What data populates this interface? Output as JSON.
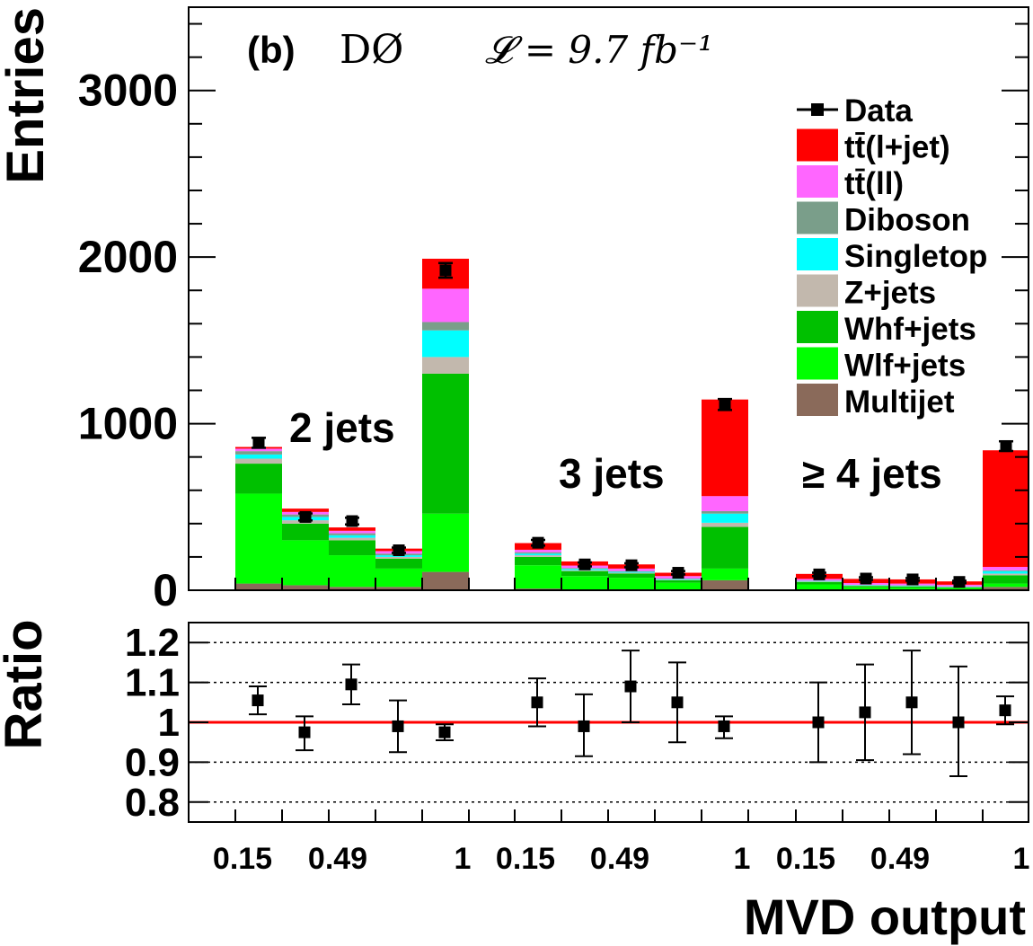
{
  "chart_data": [
    {
      "type": "bar",
      "stacked": true,
      "panel_label": "(b)",
      "experiment": "DØ",
      "luminosity": "𝓛 = 9.7 fb⁻¹",
      "ylabel": "Entries",
      "ylim": [
        0,
        3500
      ],
      "yticks": [
        0,
        1000,
        2000,
        3000
      ],
      "groups": [
        {
          "label": "2 jets",
          "bins": 5
        },
        {
          "label": "3 jets",
          "bins": 5
        },
        {
          "label": "≥ 4 jets",
          "bins": 5
        }
      ],
      "legend_position": "top-right",
      "legend": [
        {
          "name": "Data",
          "marker": "point"
        },
        {
          "name": "tt̄(l+jet)",
          "color": "#ff0000"
        },
        {
          "name": "tt̄(ll)",
          "color": "#ff66ff"
        },
        {
          "name": "Diboson",
          "color": "#7a9e8a"
        },
        {
          "name": "Singletop",
          "color": "#00ffff"
        },
        {
          "name": "Z+jets",
          "color": "#c2b8ad"
        },
        {
          "name": "Whf+jets",
          "color": "#00c000"
        },
        {
          "name": "Wlf+jets",
          "color": "#00ff00"
        },
        {
          "name": "Multijet",
          "color": "#8a6a5a"
        }
      ],
      "series": [
        {
          "name": "Multijet",
          "color": "#8a6a5a",
          "values": [
            40,
            30,
            20,
            20,
            110,
            10,
            5,
            5,
            5,
            60,
            5,
            3,
            3,
            3,
            20
          ]
        },
        {
          "name": "Wlf+jets",
          "color": "#00ff00",
          "values": [
            540,
            270,
            190,
            110,
            350,
            140,
            80,
            70,
            40,
            70,
            30,
            15,
            12,
            10,
            20
          ]
        },
        {
          "name": "Whf+jets",
          "color": "#00c000",
          "values": [
            180,
            100,
            90,
            60,
            840,
            50,
            30,
            25,
            15,
            250,
            15,
            8,
            8,
            5,
            50
          ]
        },
        {
          "name": "Z+jets",
          "color": "#c2b8ad",
          "values": [
            30,
            20,
            15,
            10,
            100,
            10,
            5,
            5,
            3,
            25,
            3,
            2,
            2,
            2,
            10
          ]
        },
        {
          "name": "Singletop",
          "color": "#00ffff",
          "values": [
            25,
            20,
            15,
            10,
            160,
            10,
            8,
            6,
            4,
            55,
            3,
            3,
            3,
            2,
            15
          ]
        },
        {
          "name": "Diboson",
          "color": "#7a9e8a",
          "values": [
            20,
            15,
            12,
            10,
            50,
            8,
            5,
            4,
            3,
            15,
            2,
            2,
            2,
            1,
            5
          ]
        },
        {
          "name": "tt̄(ll)",
          "color": "#ff66ff",
          "values": [
            15,
            15,
            15,
            15,
            200,
            15,
            15,
            15,
            15,
            90,
            10,
            10,
            10,
            10,
            20
          ]
        },
        {
          "name": "tt̄(l+jet)",
          "color": "#ff0000",
          "values": [
            10,
            20,
            20,
            15,
            180,
            40,
            25,
            25,
            20,
            580,
            30,
            25,
            25,
            20,
            700
          ]
        }
      ],
      "data": [
        {
          "value": 885,
          "err": 30
        },
        {
          "value": 440,
          "err": 21
        },
        {
          "value": 415,
          "err": 20
        },
        {
          "value": 240,
          "err": 16
        },
        {
          "value": 1920,
          "err": 44
        },
        {
          "value": 285,
          "err": 17
        },
        {
          "value": 155,
          "err": 12
        },
        {
          "value": 150,
          "err": 12
        },
        {
          "value": 105,
          "err": 10
        },
        {
          "value": 1115,
          "err": 33
        },
        {
          "value": 95,
          "err": 10
        },
        {
          "value": 70,
          "err": 8
        },
        {
          "value": 65,
          "err": 8
        },
        {
          "value": 50,
          "err": 7
        },
        {
          "value": 865,
          "err": 29
        }
      ]
    },
    {
      "type": "scatter",
      "ylabel": "Ratio",
      "xlabel": "MVD output",
      "ylim": [
        0.75,
        1.25
      ],
      "yticks": [
        "0.8",
        "0.9",
        "1",
        "1.1",
        "1.2"
      ],
      "grid_lines": [
        0.8,
        0.9,
        1.1,
        1.2
      ],
      "reference_line": 1.0,
      "reference_color": "#ff0000",
      "xtick_labels": [
        "0.15",
        "0.49",
        "1",
        "0.15",
        "0.49",
        "1",
        "0.15",
        "0.49",
        "1"
      ],
      "points": [
        {
          "y": 1.055,
          "lo": 1.02,
          "hi": 1.09
        },
        {
          "y": 0.975,
          "lo": 0.93,
          "hi": 1.015
        },
        {
          "y": 1.095,
          "lo": 1.045,
          "hi": 1.145
        },
        {
          "y": 0.99,
          "lo": 0.925,
          "hi": 1.055
        },
        {
          "y": 0.975,
          "lo": 0.955,
          "hi": 0.995
        },
        {
          "y": 1.05,
          "lo": 0.99,
          "hi": 1.11
        },
        {
          "y": 0.99,
          "lo": 0.915,
          "hi": 1.07
        },
        {
          "y": 1.09,
          "lo": 1.0,
          "hi": 1.18
        },
        {
          "y": 1.05,
          "lo": 0.95,
          "hi": 1.15
        },
        {
          "y": 0.99,
          "lo": 0.96,
          "hi": 1.015
        },
        {
          "y": 1.0,
          "lo": 0.9,
          "hi": 1.1
        },
        {
          "y": 1.025,
          "lo": 0.905,
          "hi": 1.145
        },
        {
          "y": 1.05,
          "lo": 0.92,
          "hi": 1.18
        },
        {
          "y": 1.0,
          "lo": 0.865,
          "hi": 1.14
        },
        {
          "y": 1.03,
          "lo": 0.995,
          "hi": 1.065
        }
      ]
    }
  ]
}
